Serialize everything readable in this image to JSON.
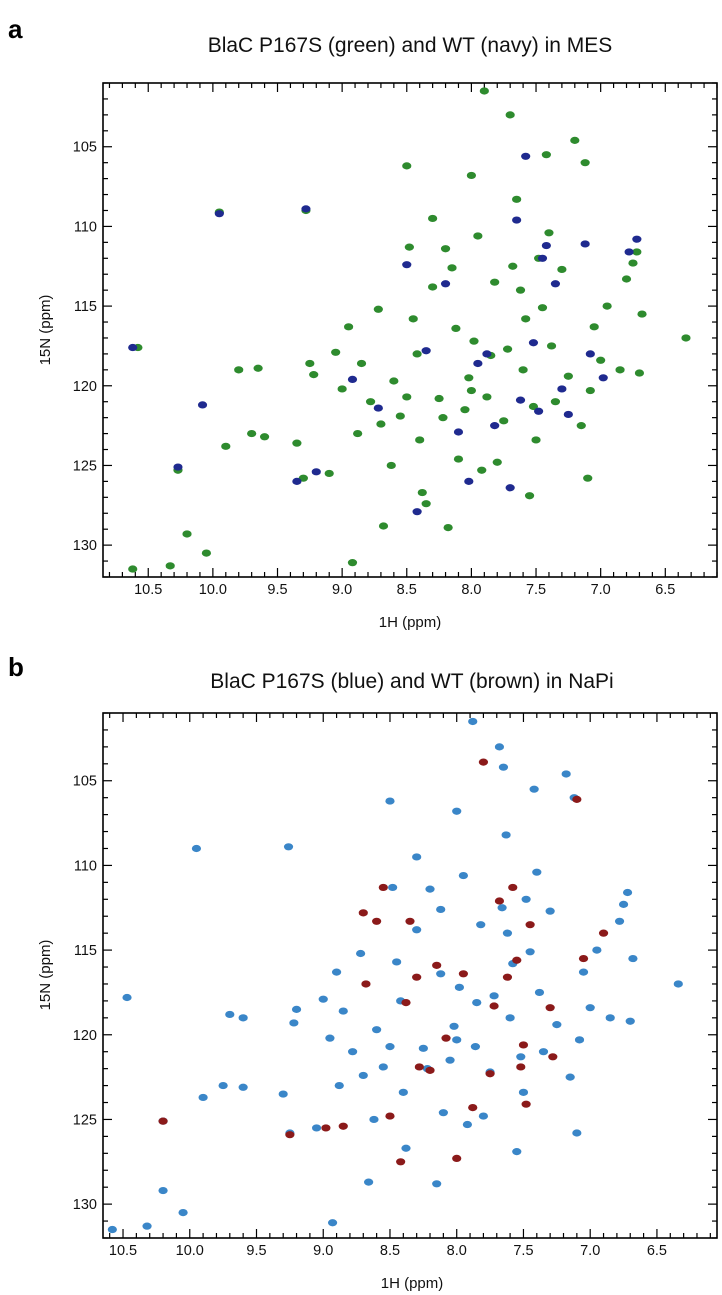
{
  "chart_data": [
    {
      "type": "scatter",
      "panel_label": "a",
      "title": "BlaC P167S (green) and WT (navy) in MES",
      "xlabel": "1H (ppm)",
      "ylabel": "15N (ppm)",
      "xlim": [
        10.85,
        6.1
      ],
      "ylim": [
        101.0,
        132.0
      ],
      "x_ticks": [
        "10.5",
        "10.0",
        "9.5",
        "9.0",
        "8.5",
        "8.0",
        "7.5",
        "7.0",
        "6.5"
      ],
      "y_ticks": [
        "105",
        "110",
        "115",
        "120",
        "125",
        "130"
      ],
      "grid": false,
      "series": [
        {
          "color": "#2e8b2e",
          "points": [
            [
              10.62,
              131.5
            ],
            [
              10.33,
              131.3
            ],
            [
              10.2,
              129.3
            ],
            [
              10.05,
              130.5
            ],
            [
              10.58,
              117.6
            ],
            [
              10.27,
              125.3
            ],
            [
              9.95,
              109.1
            ],
            [
              9.28,
              109.0
            ],
            [
              9.8,
              119.0
            ],
            [
              9.65,
              118.9
            ],
            [
              9.9,
              123.8
            ],
            [
              9.7,
              123.0
            ],
            [
              9.6,
              123.2
            ],
            [
              9.35,
              123.6
            ],
            [
              9.3,
              125.8
            ],
            [
              9.25,
              118.6
            ],
            [
              9.1,
              125.5
            ],
            [
              9.05,
              117.9
            ],
            [
              9.0,
              120.2
            ],
            [
              8.95,
              116.3
            ],
            [
              8.92,
              131.1
            ],
            [
              8.85,
              118.6
            ],
            [
              8.78,
              121.0
            ],
            [
              8.7,
              122.4
            ],
            [
              8.68,
              128.8
            ],
            [
              8.6,
              119.7
            ],
            [
              8.55,
              121.9
            ],
            [
              8.5,
              120.7
            ],
            [
              8.48,
              111.3
            ],
            [
              8.45,
              115.8
            ],
            [
              8.4,
              123.4
            ],
            [
              8.38,
              126.7
            ],
            [
              8.35,
              127.4
            ],
            [
              8.3,
              113.8
            ],
            [
              8.25,
              120.8
            ],
            [
              8.22,
              122.0
            ],
            [
              8.2,
              111.4
            ],
            [
              8.18,
              128.9
            ],
            [
              8.15,
              112.6
            ],
            [
              8.1,
              124.6
            ],
            [
              8.05,
              121.5
            ],
            [
              8.02,
              119.5
            ],
            [
              8.0,
              120.3
            ],
            [
              7.98,
              117.2
            ],
            [
              7.95,
              110.6
            ],
            [
              7.92,
              125.3
            ],
            [
              7.9,
              101.5
            ],
            [
              7.88,
              120.7
            ],
            [
              7.85,
              118.1
            ],
            [
              7.8,
              124.8
            ],
            [
              7.75,
              122.2
            ],
            [
              7.72,
              117.7
            ],
            [
              7.7,
              103.0
            ],
            [
              7.68,
              112.5
            ],
            [
              7.65,
              108.3
            ],
            [
              7.6,
              119.0
            ],
            [
              7.55,
              126.9
            ],
            [
              7.52,
              121.3
            ],
            [
              7.5,
              123.4
            ],
            [
              7.48,
              112.0
            ],
            [
              7.45,
              115.1
            ],
            [
              7.4,
              110.4
            ],
            [
              7.38,
              117.5
            ],
            [
              7.35,
              121.0
            ],
            [
              7.3,
              112.7
            ],
            [
              7.25,
              119.4
            ],
            [
              7.2,
              104.6
            ],
            [
              7.18,
              100.9
            ],
            [
              7.15,
              122.5
            ],
            [
              7.12,
              106.0
            ],
            [
              7.1,
              125.8
            ],
            [
              7.08,
              120.3
            ],
            [
              7.05,
              116.3
            ],
            [
              7.0,
              118.4
            ],
            [
              6.95,
              115.0
            ],
            [
              6.85,
              119.0
            ],
            [
              6.8,
              113.3
            ],
            [
              6.75,
              112.3
            ],
            [
              6.72,
              111.6
            ],
            [
              6.7,
              119.2
            ],
            [
              6.68,
              115.5
            ],
            [
              6.34,
              117.0
            ],
            [
              9.22,
              119.3
            ],
            [
              8.88,
              123.0
            ],
            [
              8.62,
              125.0
            ],
            [
              8.42,
              118.0
            ],
            [
              8.12,
              116.4
            ],
            [
              7.82,
              113.5
            ],
            [
              7.62,
              114.0
            ],
            [
              7.42,
              105.5
            ],
            [
              7.58,
              115.8
            ],
            [
              8.72,
              115.2
            ],
            [
              8.3,
              109.5
            ],
            [
              8.5,
              106.2
            ],
            [
              8.0,
              106.8
            ]
          ]
        },
        {
          "color": "#1f2a8f",
          "points": [
            [
              10.62,
              117.6
            ],
            [
              10.27,
              125.1
            ],
            [
              10.08,
              121.2
            ],
            [
              9.95,
              109.2
            ],
            [
              9.28,
              108.9
            ],
            [
              9.35,
              126.0
            ],
            [
              9.2,
              125.4
            ],
            [
              8.92,
              119.6
            ],
            [
              8.72,
              121.4
            ],
            [
              8.5,
              112.4
            ],
            [
              8.42,
              127.9
            ],
            [
              8.35,
              117.8
            ],
            [
              8.2,
              113.6
            ],
            [
              8.1,
              122.9
            ],
            [
              8.02,
              126.0
            ],
            [
              7.95,
              118.6
            ],
            [
              7.88,
              118.0
            ],
            [
              7.82,
              122.5
            ],
            [
              7.7,
              126.4
            ],
            [
              7.65,
              109.6
            ],
            [
              7.62,
              120.9
            ],
            [
              7.58,
              105.6
            ],
            [
              7.52,
              117.3
            ],
            [
              7.48,
              121.6
            ],
            [
              7.45,
              112.0
            ],
            [
              7.42,
              111.2
            ],
            [
              7.35,
              113.6
            ],
            [
              7.3,
              120.2
            ],
            [
              7.25,
              121.8
            ],
            [
              7.12,
              111.1
            ],
            [
              7.08,
              118.0
            ],
            [
              6.98,
              119.5
            ],
            [
              6.78,
              111.6
            ],
            [
              6.72,
              110.8
            ]
          ]
        }
      ]
    },
    {
      "type": "scatter",
      "panel_label": "b",
      "title": "BlaC P167S (blue) and WT (brown) in NaPi",
      "xlabel": "1H (ppm)",
      "ylabel": "15N (ppm)",
      "xlim": [
        10.65,
        6.05
      ],
      "ylim": [
        101.0,
        132.0
      ],
      "x_ticks": [
        "10.5",
        "10.0",
        "9.5",
        "9.0",
        "8.5",
        "8.0",
        "7.5",
        "7.0",
        "6.5"
      ],
      "y_ticks": [
        "105",
        "110",
        "115",
        "120",
        "125",
        "130"
      ],
      "grid": false,
      "series": [
        {
          "color": "#3a86c8",
          "points": [
            [
              10.58,
              131.5
            ],
            [
              10.32,
              131.3
            ],
            [
              10.2,
              129.2
            ],
            [
              10.05,
              130.5
            ],
            [
              10.47,
              117.8
            ],
            [
              10.2,
              125.1
            ],
            [
              9.95,
              109.0
            ],
            [
              9.26,
              108.9
            ],
            [
              9.7,
              118.8
            ],
            [
              9.6,
              119.0
            ],
            [
              9.9,
              123.7
            ],
            [
              9.75,
              123.0
            ],
            [
              9.6,
              123.1
            ],
            [
              9.3,
              123.5
            ],
            [
              9.25,
              125.8
            ],
            [
              9.2,
              118.5
            ],
            [
              9.05,
              125.5
            ],
            [
              9.0,
              117.9
            ],
            [
              8.95,
              120.2
            ],
            [
              8.9,
              116.3
            ],
            [
              8.93,
              131.1
            ],
            [
              8.85,
              118.6
            ],
            [
              8.78,
              121.0
            ],
            [
              8.7,
              122.4
            ],
            [
              8.66,
              128.7
            ],
            [
              8.6,
              119.7
            ],
            [
              8.55,
              121.9
            ],
            [
              8.5,
              120.7
            ],
            [
              8.48,
              111.3
            ],
            [
              8.45,
              115.7
            ],
            [
              8.4,
              123.4
            ],
            [
              8.38,
              126.7
            ],
            [
              8.3,
              113.8
            ],
            [
              8.25,
              120.8
            ],
            [
              8.22,
              122.0
            ],
            [
              8.2,
              111.4
            ],
            [
              8.15,
              128.8
            ],
            [
              8.12,
              112.6
            ],
            [
              8.1,
              124.6
            ],
            [
              8.05,
              121.5
            ],
            [
              8.02,
              119.5
            ],
            [
              8.0,
              120.3
            ],
            [
              7.98,
              117.2
            ],
            [
              7.95,
              110.6
            ],
            [
              7.92,
              125.3
            ],
            [
              7.88,
              101.5
            ],
            [
              7.86,
              120.7
            ],
            [
              7.85,
              118.1
            ],
            [
              7.8,
              124.8
            ],
            [
              7.75,
              122.2
            ],
            [
              7.72,
              117.7
            ],
            [
              7.68,
              103.0
            ],
            [
              7.66,
              112.5
            ],
            [
              7.63,
              108.2
            ],
            [
              7.6,
              119.0
            ],
            [
              7.55,
              126.9
            ],
            [
              7.52,
              121.3
            ],
            [
              7.5,
              123.4
            ],
            [
              7.48,
              112.0
            ],
            [
              7.45,
              115.1
            ],
            [
              7.4,
              110.4
            ],
            [
              7.38,
              117.5
            ],
            [
              7.35,
              121.0
            ],
            [
              7.3,
              112.7
            ],
            [
              7.25,
              119.4
            ],
            [
              7.18,
              104.6
            ],
            [
              7.16,
              100.9
            ],
            [
              7.15,
              122.5
            ],
            [
              7.12,
              106.0
            ],
            [
              7.1,
              125.8
            ],
            [
              7.08,
              120.3
            ],
            [
              7.05,
              116.3
            ],
            [
              7.0,
              118.4
            ],
            [
              6.95,
              115.0
            ],
            [
              6.85,
              119.0
            ],
            [
              6.78,
              113.3
            ],
            [
              6.75,
              112.3
            ],
            [
              6.72,
              111.6
            ],
            [
              6.7,
              119.2
            ],
            [
              6.68,
              115.5
            ],
            [
              6.34,
              117.0
            ],
            [
              9.22,
              119.3
            ],
            [
              8.88,
              123.0
            ],
            [
              8.62,
              125.0
            ],
            [
              8.42,
              118.0
            ],
            [
              8.12,
              116.4
            ],
            [
              7.82,
              113.5
            ],
            [
              7.62,
              114.0
            ],
            [
              7.42,
              105.5
            ],
            [
              7.58,
              115.8
            ],
            [
              8.72,
              115.2
            ],
            [
              8.3,
              109.5
            ],
            [
              8.5,
              106.2
            ],
            [
              8.0,
              106.8
            ],
            [
              7.65,
              104.2
            ]
          ]
        },
        {
          "color": "#8b1a1a",
          "points": [
            [
              10.2,
              125.1
            ],
            [
              9.25,
              125.9
            ],
            [
              8.98,
              125.5
            ],
            [
              8.85,
              125.4
            ],
            [
              8.7,
              112.8
            ],
            [
              8.68,
              117.0
            ],
            [
              8.6,
              113.3
            ],
            [
              8.55,
              111.3
            ],
            [
              8.5,
              124.8
            ],
            [
              8.42,
              127.5
            ],
            [
              8.38,
              118.1
            ],
            [
              8.35,
              113.3
            ],
            [
              8.3,
              116.6
            ],
            [
              8.28,
              121.9
            ],
            [
              8.2,
              122.1
            ],
            [
              8.15,
              115.9
            ],
            [
              8.08,
              120.2
            ],
            [
              8.0,
              127.3
            ],
            [
              7.95,
              116.4
            ],
            [
              7.88,
              124.3
            ],
            [
              7.8,
              103.9
            ],
            [
              7.75,
              122.3
            ],
            [
              7.72,
              118.3
            ],
            [
              7.68,
              112.1
            ],
            [
              7.62,
              116.6
            ],
            [
              7.58,
              111.3
            ],
            [
              7.55,
              115.6
            ],
            [
              7.52,
              121.9
            ],
            [
              7.5,
              120.6
            ],
            [
              7.48,
              124.1
            ],
            [
              7.45,
              113.5
            ],
            [
              7.3,
              118.4
            ],
            [
              7.28,
              121.3
            ],
            [
              7.1,
              106.1
            ],
            [
              7.05,
              115.5
            ],
            [
              6.9,
              114.0
            ]
          ]
        }
      ]
    }
  ]
}
